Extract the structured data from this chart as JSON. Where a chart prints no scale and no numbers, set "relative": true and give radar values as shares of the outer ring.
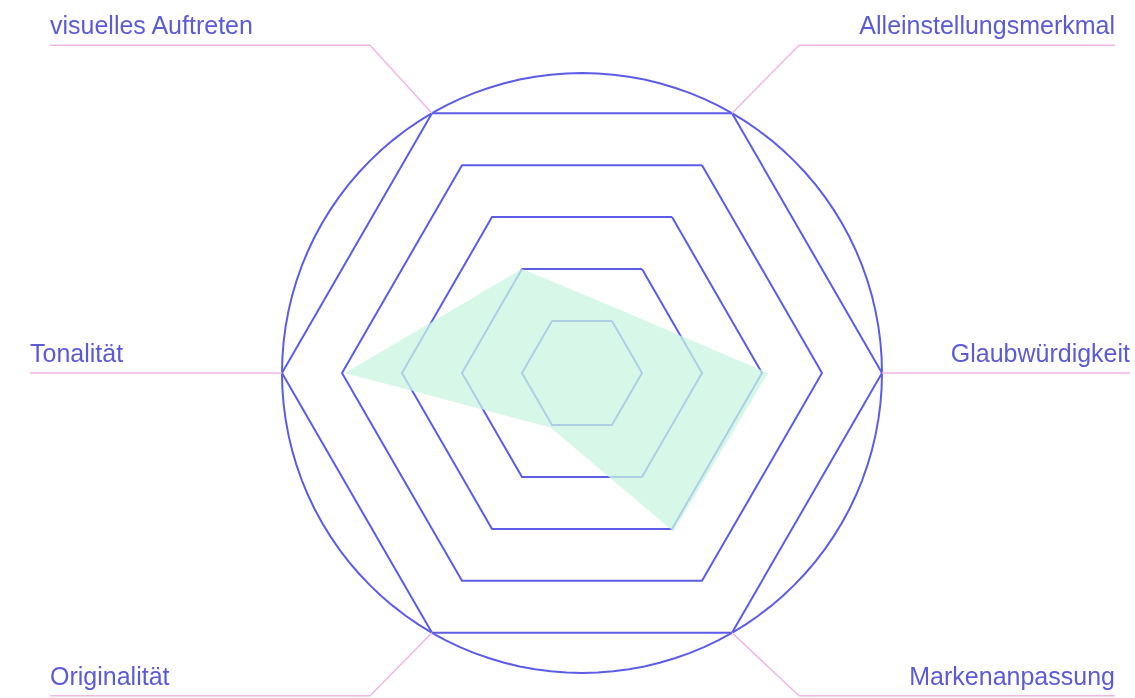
{
  "chart_data": {
    "type": "radar",
    "relative": true,
    "grid": true,
    "categories": [
      "Alleinstellungsmerkmal",
      "Glaubwürdigkeit",
      "Markenanpassung",
      "Originalität",
      "Tonalität",
      "visuelles Auftreten"
    ],
    "series": [
      {
        "color": "#c9f5e1",
        "values": [
          0.245,
          0.62,
          0.61,
          0.21,
          0.79,
          0.4
        ]
      }
    ]
  }
}
